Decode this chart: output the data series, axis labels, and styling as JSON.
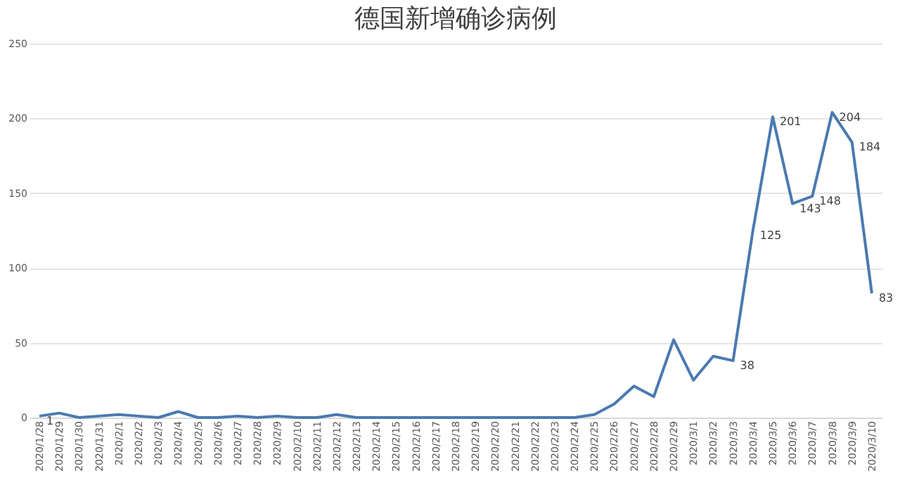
{
  "chart_data": {
    "type": "line",
    "title": "德国新增确诊病例",
    "categories": [
      "2020/1/28",
      "2020/1/29",
      "2020/1/30",
      "2020/1/31",
      "2020/2/1",
      "2020/2/2",
      "2020/2/3",
      "2020/2/4",
      "2020/2/5",
      "2020/2/6",
      "2020/2/7",
      "2020/2/8",
      "2020/2/9",
      "2020/2/10",
      "2020/2/11",
      "2020/2/12",
      "2020/2/13",
      "2020/2/14",
      "2020/2/15",
      "2020/2/16",
      "2020/2/17",
      "2020/2/18",
      "2020/2/19",
      "2020/2/20",
      "2020/2/21",
      "2020/2/22",
      "2020/2/23",
      "2020/2/24",
      "2020/2/25",
      "2020/2/26",
      "2020/2/27",
      "2020/2/28",
      "2020/2/29",
      "2020/3/1",
      "2020/3/2",
      "2020/3/3",
      "2020/3/4",
      "2020/3/5",
      "2020/3/6",
      "2020/3/7",
      "2020/3/8",
      "2020/3/9",
      "2020/3/10"
    ],
    "series": [
      {
        "color": "#4a7ab0",
        "values": [
          1,
          3,
          0,
          1,
          2,
          1,
          0,
          4,
          0,
          0,
          1,
          0,
          1,
          0,
          0,
          2,
          0,
          0,
          0,
          0,
          0,
          0,
          0,
          0,
          0,
          0,
          0,
          0,
          2,
          9,
          21,
          14,
          52,
          25,
          41,
          38,
          125,
          201,
          143,
          148,
          204,
          184,
          83
        ],
        "value_labels": [
          "1",
          null,
          null,
          null,
          null,
          null,
          null,
          null,
          null,
          null,
          null,
          null,
          null,
          null,
          null,
          null,
          null,
          null,
          null,
          null,
          null,
          null,
          null,
          null,
          null,
          null,
          null,
          null,
          null,
          null,
          null,
          null,
          null,
          null,
          null,
          "38",
          "125",
          "201",
          "143",
          "148",
          "204",
          "184",
          "83"
        ]
      }
    ],
    "ylim": [
      0,
      250
    ],
    "yticks": [
      0,
      50,
      100,
      150,
      200,
      250
    ],
    "grid": "y",
    "marker": "none",
    "line_style": "solid"
  }
}
